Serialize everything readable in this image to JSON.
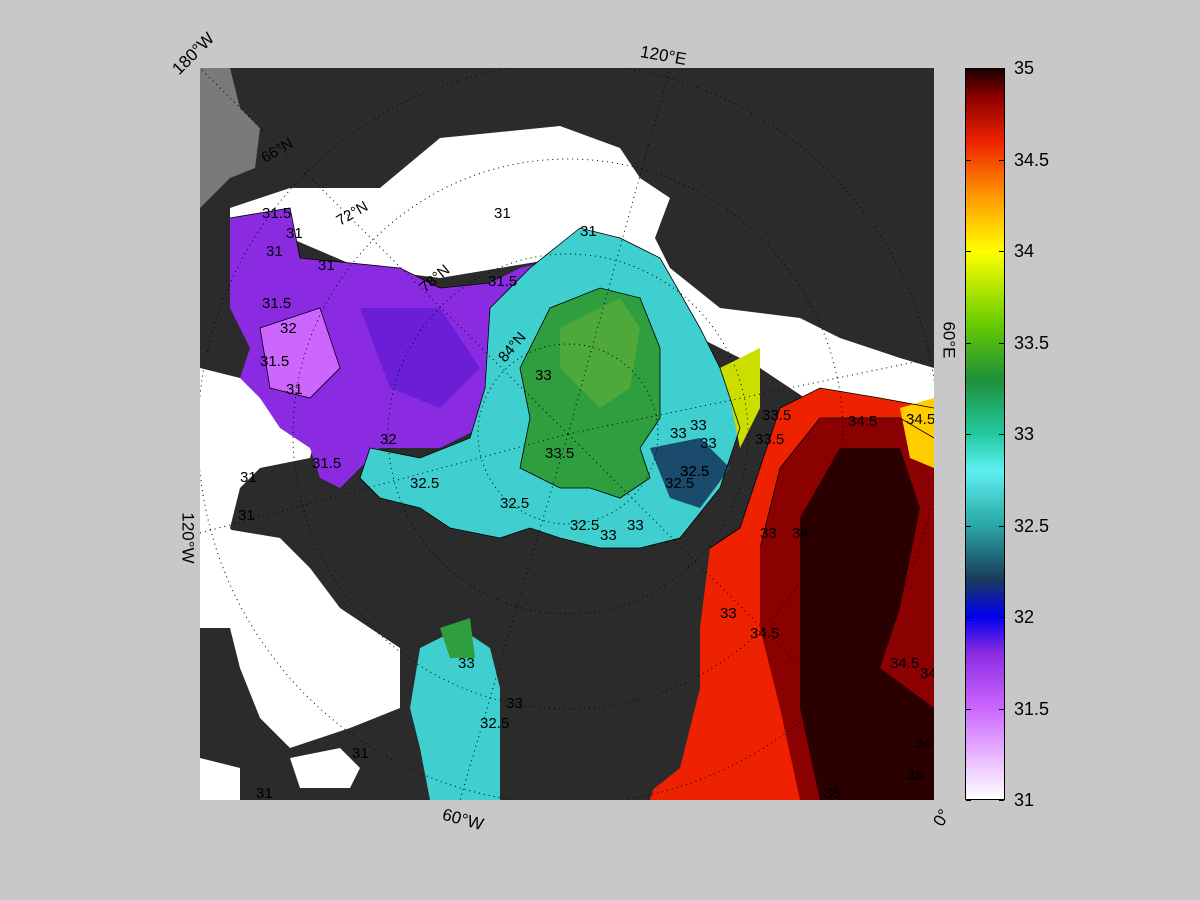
{
  "map": {
    "corner_labels": {
      "top_left": "180°W",
      "top": "120°E",
      "right": "60°E",
      "left": "120°W",
      "bottom": "60°W",
      "bottom_right": "0°"
    },
    "grid_labels": [
      "66°N",
      "72°N",
      "78°N",
      "84°N"
    ],
    "contour_labels": [
      "31.5",
      "31",
      "31",
      "31",
      "31.5",
      "32",
      "31.5",
      "31",
      "32",
      "31.5",
      "31",
      "31",
      "31",
      "31.5",
      "32.5",
      "31",
      "32.5",
      "33",
      "33",
      "33.5",
      "32.5",
      "32.5",
      "32.5",
      "33",
      "33",
      "33",
      "33.5",
      "33",
      "32.5",
      "33.5",
      "34.5",
      "34.5",
      "34",
      "33",
      "34.5",
      "34.5",
      "34",
      "33",
      "32.5",
      "33",
      "31",
      "33",
      "34",
      "35",
      "35",
      "31"
    ]
  },
  "colorbar": {
    "min": 31,
    "max": 35,
    "ticks": [
      "35",
      "34.5",
      "34",
      "33.5",
      "33",
      "32.5",
      "32",
      "31.5",
      "31"
    ],
    "stops": [
      {
        "v": 31.0,
        "c": "#ffffff"
      },
      {
        "v": 31.5,
        "c": "#cc66ff"
      },
      {
        "v": 31.8,
        "c": "#8a2be2"
      },
      {
        "v": 32.0,
        "c": "#0000ee"
      },
      {
        "v": 32.2,
        "c": "#1a3a5c"
      },
      {
        "v": 32.5,
        "c": "#2aa6a6"
      },
      {
        "v": 32.8,
        "c": "#5ff0f0"
      },
      {
        "v": 33.0,
        "c": "#22c9a0"
      },
      {
        "v": 33.3,
        "c": "#1f8f3a"
      },
      {
        "v": 33.6,
        "c": "#66cc00"
      },
      {
        "v": 34.0,
        "c": "#ffff00"
      },
      {
        "v": 34.3,
        "c": "#ff9900"
      },
      {
        "v": 34.6,
        "c": "#ee2200"
      },
      {
        "v": 34.85,
        "c": "#8b0000"
      },
      {
        "v": 35.0,
        "c": "#1a0000"
      }
    ]
  }
}
